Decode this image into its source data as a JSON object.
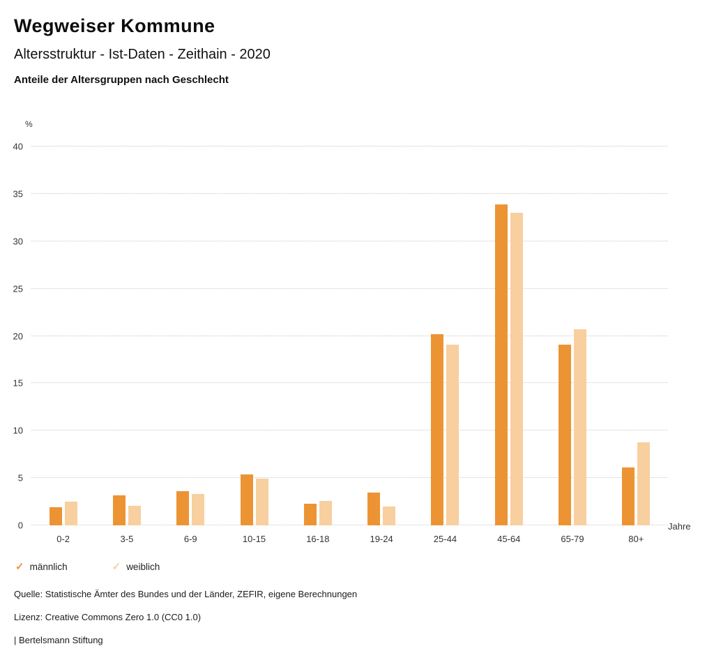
{
  "header": {
    "title": "Wegweiser Kommune",
    "subtitle": "Altersstruktur - Ist-Daten - Zeithain - 2020",
    "subsubtitle": "Anteile der Altersgruppen nach Geschlecht"
  },
  "chart_data": {
    "type": "bar",
    "categories": [
      "0-2",
      "3-5",
      "6-9",
      "10-15",
      "16-18",
      "19-24",
      "25-44",
      "45-64",
      "65-79",
      "80+"
    ],
    "series": [
      {
        "name": "männlich",
        "color": "#EC9434",
        "values": [
          1.9,
          3.2,
          3.6,
          5.4,
          2.3,
          3.5,
          20.2,
          33.9,
          19.1,
          6.1
        ]
      },
      {
        "name": "weiblich",
        "color": "#F8CF9E",
        "values": [
          2.5,
          2.1,
          3.3,
          4.9,
          2.6,
          2.0,
          19.1,
          33.0,
          20.7,
          8.8
        ]
      }
    ],
    "title": "Anteile der Altersgruppen nach Geschlecht",
    "xlabel": "Jahre",
    "ylabel": "%",
    "ylim": [
      0,
      40
    ],
    "yticks": [
      0,
      5,
      10,
      15,
      20,
      25,
      30,
      35,
      40
    ],
    "grid": "horizontal-dotted",
    "legend_position": "bottom-left"
  },
  "legend": {
    "items": [
      {
        "label": "männlich",
        "color": "#EC9434",
        "icon": "check-icon"
      },
      {
        "label": "weiblich",
        "color": "#F8CF9E",
        "icon": "check-icon"
      }
    ]
  },
  "footer": {
    "source": "Quelle: Statistische Ämter des Bundes und der Länder, ZEFIR, eigene Berechnungen",
    "license": "Lizenz: Creative Commons Zero 1.0 (CC0 1.0)",
    "attribution": "| Bertelsmann Stiftung"
  }
}
